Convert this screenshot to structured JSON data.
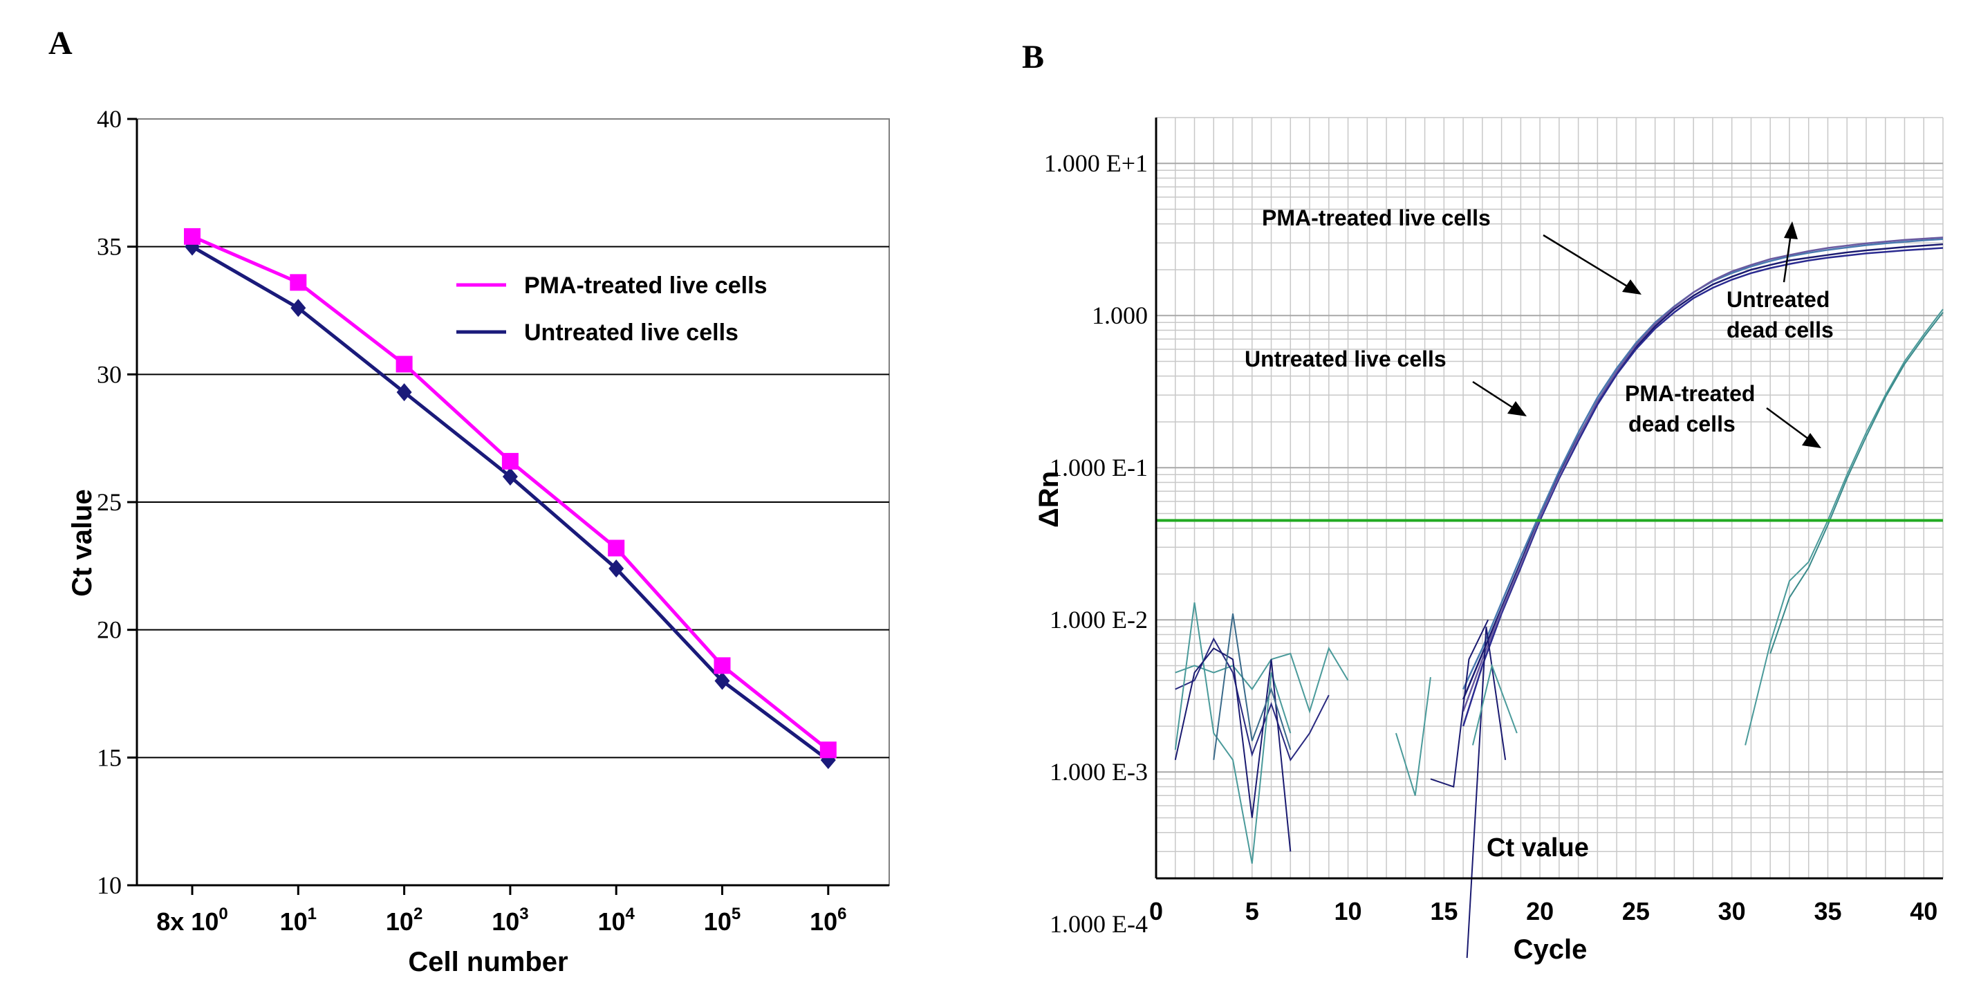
{
  "panels": {
    "a_letter": "A",
    "b_letter": "B"
  },
  "colors": {
    "pma_live": "#ff00ff",
    "untreated_live": "#1a1a7a",
    "threshold": "#22aa22",
    "grid_b": "#c8c8c8",
    "teal": "#4a9a9a",
    "navy": "#1a1a70"
  },
  "chart_data": [
    {
      "type": "line",
      "ylabel": "Ct value",
      "xlabel": "Cell number",
      "ylim": [
        10,
        40
      ],
      "ytick_labels": [
        "10",
        "15",
        "20",
        "25",
        "30",
        "35",
        "40"
      ],
      "grid": "horizontal lines at 15, 20, 25, 30, 35",
      "categories": [
        {
          "base": "8x 10",
          "exp": "0"
        },
        {
          "base": "10",
          "exp": "1"
        },
        {
          "base": "10",
          "exp": "2"
        },
        {
          "base": "10",
          "exp": "3"
        },
        {
          "base": "10",
          "exp": "4"
        },
        {
          "base": "10",
          "exp": "5"
        },
        {
          "base": "10",
          "exp": "6"
        }
      ],
      "legend_position": "top-right",
      "series": [
        {
          "name": "PMA-treated live cells",
          "marker": "square",
          "values": [
            35.4,
            33.6,
            30.4,
            26.6,
            23.2,
            18.6,
            15.3
          ]
        },
        {
          "name": "Untreated live cells",
          "marker": "diamond",
          "values": [
            35.0,
            32.6,
            29.3,
            26.0,
            22.4,
            18.0,
            14.9
          ]
        }
      ]
    },
    {
      "type": "line",
      "yscale": "log",
      "ylabel": "ΔRn",
      "xlabel": "Cycle",
      "xlim": [
        0,
        41
      ],
      "ylim": [
        0.0002,
        20
      ],
      "xtick_labels": [
        "0",
        "5",
        "10",
        "15",
        "20",
        "25",
        "30",
        "35",
        "40"
      ],
      "ytick_labels": [
        "1.000 E+1",
        "1.000",
        "1.000 E-1",
        "1.000 E-2",
        "1.000 E-3",
        "1.000 E-4"
      ],
      "threshold": 0.045,
      "annotations": {
        "pma_live": "PMA-treated live cells",
        "untreated_live": "Untreated live cells",
        "untreated_dead_1": "Untreated",
        "untreated_dead_2": "dead cells",
        "pma_dead_1": "PMA-treated",
        "pma_dead_2": "dead cells",
        "ct_value": "Ct value"
      },
      "series": [
        {
          "name": "live-1",
          "group": "live",
          "color": "#1a1a70",
          "x": [
            16,
            17,
            18,
            19,
            20,
            21,
            22,
            23,
            24,
            25,
            26,
            27,
            28,
            29,
            30,
            31,
            32,
            33,
            34,
            35,
            36,
            37,
            38,
            39,
            40,
            41
          ],
          "y": [
            0.003,
            0.006,
            0.012,
            0.024,
            0.048,
            0.09,
            0.16,
            0.27,
            0.42,
            0.62,
            0.85,
            1.1,
            1.35,
            1.6,
            1.8,
            2.0,
            2.15,
            2.3,
            2.4,
            2.5,
            2.6,
            2.68,
            2.75,
            2.82,
            2.88,
            2.94
          ]
        },
        {
          "name": "live-2",
          "group": "live",
          "color": "#2a2a90",
          "x": [
            16,
            17,
            18,
            19,
            20,
            21,
            22,
            23,
            24,
            25,
            26,
            27,
            28,
            29,
            30,
            31,
            32,
            33,
            34,
            35,
            36,
            37,
            38,
            39,
            40,
            41
          ],
          "y": [
            0.002,
            0.005,
            0.011,
            0.022,
            0.045,
            0.085,
            0.15,
            0.26,
            0.41,
            0.6,
            0.82,
            1.05,
            1.3,
            1.52,
            1.72,
            1.9,
            2.05,
            2.18,
            2.3,
            2.4,
            2.48,
            2.56,
            2.62,
            2.68,
            2.73,
            2.78
          ]
        },
        {
          "name": "live-3",
          "group": "live",
          "color": "#4a7ab0",
          "x": [
            16,
            17,
            18,
            19,
            20,
            21,
            22,
            23,
            24,
            25,
            26,
            27,
            28,
            29,
            30,
            31,
            32,
            33,
            34,
            35,
            36,
            37,
            38,
            39,
            40,
            41
          ],
          "y": [
            0.0035,
            0.0065,
            0.013,
            0.026,
            0.05,
            0.095,
            0.17,
            0.29,
            0.45,
            0.66,
            0.9,
            1.15,
            1.42,
            1.68,
            1.9,
            2.1,
            2.28,
            2.45,
            2.58,
            2.7,
            2.8,
            2.9,
            2.98,
            3.05,
            3.12,
            3.18
          ]
        },
        {
          "name": "live-4",
          "group": "live",
          "color": "#6a5aa0",
          "x": [
            16,
            17,
            18,
            19,
            20,
            21,
            22,
            23,
            24,
            25,
            26,
            27,
            28,
            29,
            30,
            31,
            32,
            33,
            34,
            35,
            36,
            37,
            38,
            39,
            40,
            41
          ],
          "y": [
            0.0025,
            0.0055,
            0.0115,
            0.023,
            0.047,
            0.088,
            0.158,
            0.275,
            0.43,
            0.64,
            0.88,
            1.14,
            1.42,
            1.7,
            1.95,
            2.15,
            2.35,
            2.5,
            2.65,
            2.78,
            2.88,
            2.98,
            3.06,
            3.14,
            3.2,
            3.26
          ]
        },
        {
          "name": "pma-dead-1",
          "group": "dead",
          "color": "#4a9a9a",
          "x": [
            30.7,
            32,
            33,
            34,
            35,
            36,
            37,
            38,
            39,
            40,
            41
          ],
          "y": [
            0.0015,
            0.007,
            0.018,
            0.024,
            0.045,
            0.09,
            0.17,
            0.3,
            0.5,
            0.75,
            1.1
          ]
        },
        {
          "name": "pma-dead-2",
          "group": "dead",
          "color": "#3a8a8a",
          "x": [
            32,
            33,
            34,
            35,
            36,
            37,
            38,
            39,
            40,
            41
          ],
          "y": [
            0.006,
            0.014,
            0.022,
            0.042,
            0.085,
            0.16,
            0.29,
            0.48,
            0.72,
            1.05
          ]
        },
        {
          "name": "noise-1",
          "group": "noise",
          "color": "#4a9a9a",
          "x": [
            1,
            2,
            3,
            4,
            5,
            6,
            7,
            8,
            9,
            10
          ],
          "y": [
            0.0045,
            0.005,
            0.0045,
            0.005,
            0.0035,
            0.0055,
            0.006,
            0.0025,
            0.0065,
            0.004
          ]
        },
        {
          "name": "noise-2",
          "group": "noise",
          "color": "#2a2a80",
          "x": [
            1,
            2,
            3,
            4,
            5,
            6,
            7,
            8,
            9
          ],
          "y": [
            0.0035,
            0.004,
            0.0075,
            0.0045,
            0.0013,
            0.0028,
            0.0012,
            0.0018,
            0.0032
          ]
        },
        {
          "name": "noise-3",
          "group": "noise",
          "color": "#4a9a9a",
          "x": [
            1,
            2,
            3,
            4,
            5,
            6,
            7
          ],
          "y": [
            0.0014,
            0.013,
            0.0018,
            0.0012,
            0.00025,
            0.0045,
            0.0018
          ]
        },
        {
          "name": "noise-4",
          "group": "noise",
          "color": "#1a1a70",
          "x": [
            1,
            2,
            3,
            4,
            5,
            6,
            7
          ],
          "y": [
            0.0012,
            0.0045,
            0.0065,
            0.0055,
            0.0005,
            0.0055,
            0.0003
          ]
        },
        {
          "name": "noise-5",
          "group": "noise",
          "color": "#3a6a8a",
          "x": [
            3,
            4,
            5,
            6,
            7
          ],
          "y": [
            0.0012,
            0.011,
            0.0016,
            0.0035,
            0.0014
          ]
        },
        {
          "name": "noise-6",
          "group": "noise",
          "color": "#4a9a9a",
          "x": [
            12.5,
            13.5,
            14.3
          ],
          "y": [
            0.0018,
            0.0007,
            0.0042
          ]
        },
        {
          "name": "noise-7",
          "group": "noise",
          "color": "#1a1a70",
          "x": [
            14.3,
            15.5,
            16.3,
            17.3
          ],
          "y": [
            0.0009,
            0.0008,
            0.0055,
            0.01
          ]
        },
        {
          "name": "noise-8",
          "group": "noise",
          "color": "#1a1a70",
          "x": [
            16.2,
            17.2,
            18.2
          ],
          "y": [
            6e-05,
            0.009,
            0.0012
          ]
        },
        {
          "name": "noise-9",
          "group": "noise",
          "color": "#4a9a9a",
          "x": [
            16.5,
            17.5,
            18.8
          ],
          "y": [
            0.0015,
            0.005,
            0.0018
          ]
        }
      ]
    }
  ]
}
